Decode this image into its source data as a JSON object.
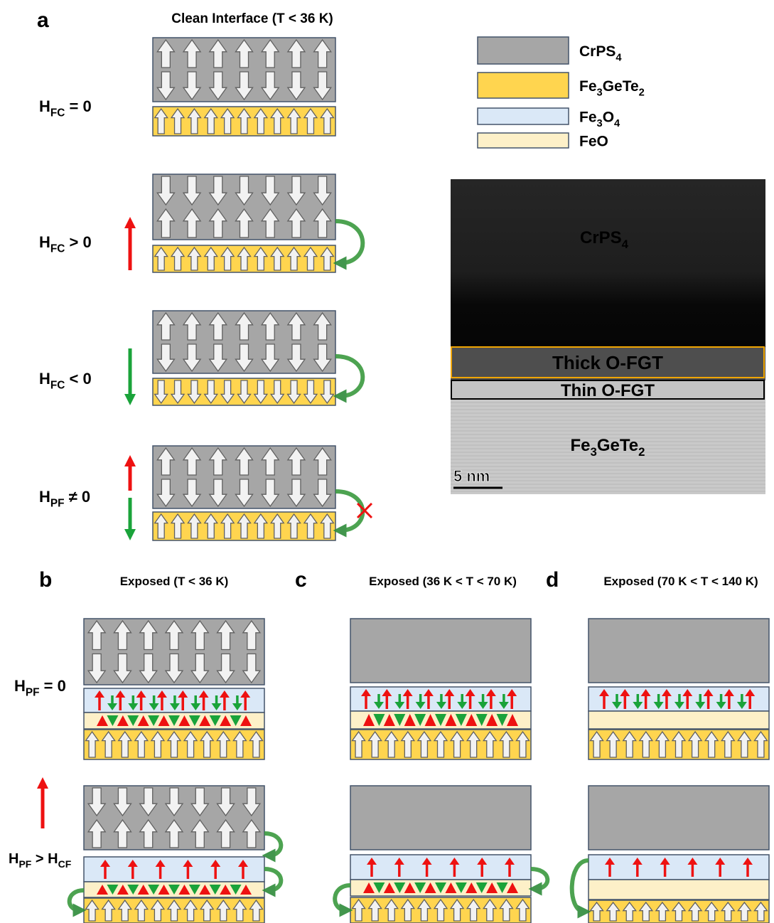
{
  "panels": [
    {
      "letter": "a",
      "title": "Clean Interface (T < 36 K)",
      "rows": [
        {
          "label": [
            {
              "text": "H"
            },
            {
              "text": "FC",
              "sub": true
            },
            {
              "text": " = 0"
            }
          ]
        },
        {
          "label": [
            {
              "text": "H"
            },
            {
              "text": "FC",
              "sub": true
            },
            {
              "text": " > 0"
            }
          ]
        },
        {
          "label": [
            {
              "text": "H"
            },
            {
              "text": "FC",
              "sub": true
            },
            {
              "text": " < 0"
            }
          ]
        },
        {
          "label": [
            {
              "text": "H"
            },
            {
              "text": "PF",
              "sub": true
            },
            {
              "text": " ≠ 0"
            }
          ]
        }
      ]
    },
    {
      "letter": "b",
      "title": "Exposed (T < 36 K)",
      "rows": [
        {
          "label": [
            {
              "text": "H"
            },
            {
              "text": "PF",
              "sub": true
            },
            {
              "text": " = 0"
            }
          ]
        },
        {
          "label": [
            {
              "text": "H"
            },
            {
              "text": "PF",
              "sub": true
            },
            {
              "text": " > H"
            },
            {
              "text": "CF",
              "sub": true
            }
          ]
        }
      ]
    },
    {
      "letter": "c",
      "title": "Exposed (36 K < T < 70 K)"
    },
    {
      "letter": "d",
      "title": "Exposed (70 K < T < 140 K)"
    }
  ],
  "legend": [
    {
      "label": [
        {
          "text": "CrPS"
        },
        {
          "text": "4",
          "sub": true
        }
      ]
    },
    {
      "label": [
        {
          "text": "Fe"
        },
        {
          "text": "3",
          "sub": true
        },
        {
          "text": "GeTe"
        },
        {
          "text": "2",
          "sub": true
        }
      ]
    },
    {
      "label": [
        {
          "text": "Fe"
        },
        {
          "text": "3",
          "sub": true
        },
        {
          "text": "O"
        },
        {
          "text": "4",
          "sub": true
        }
      ]
    },
    {
      "label": [
        {
          "text": "FeO"
        }
      ]
    }
  ],
  "image": {
    "top": [
      {
        "text": "CrPS"
      },
      {
        "text": "4",
        "sub": true
      }
    ],
    "thick": "Thick O-FGT",
    "thin": "Thin O-FGT",
    "bottom": [
      {
        "text": "Fe"
      },
      {
        "text": "3",
        "sub": true
      },
      {
        "text": "GeTe"
      },
      {
        "text": "2",
        "sub": true
      }
    ],
    "scale": "5 nm"
  }
}
